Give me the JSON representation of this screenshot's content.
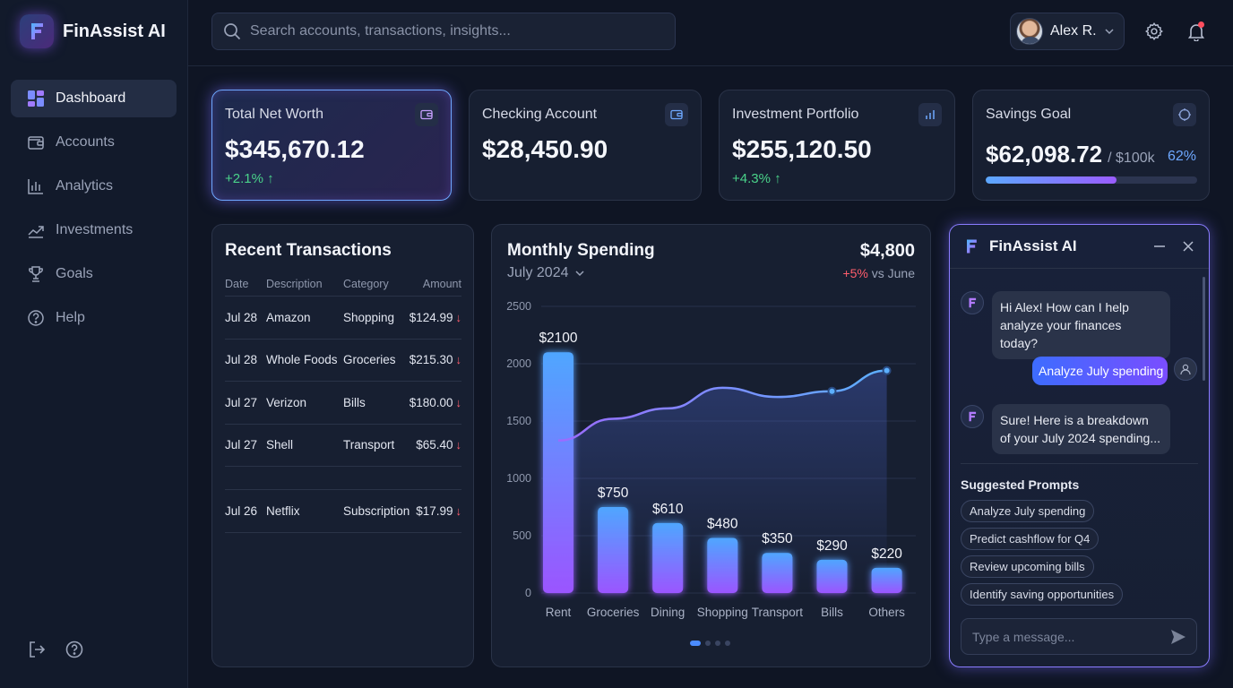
{
  "app": {
    "name": "FinAssist AI"
  },
  "sidebar": {
    "items": [
      {
        "label": "Dashboard",
        "icon": "dashboard-icon",
        "active": true
      },
      {
        "label": "Accounts",
        "icon": "wallet-icon"
      },
      {
        "label": "Analytics",
        "icon": "bar-chart-icon"
      },
      {
        "label": "Investments",
        "icon": "trend-icon"
      },
      {
        "label": "Goals",
        "icon": "trophy-icon"
      },
      {
        "label": "Help",
        "icon": "help-icon"
      }
    ],
    "bottom": [
      "logout-icon",
      "help-icon"
    ]
  },
  "search": {
    "placeholder": "Search accounts, transactions, insights..."
  },
  "user": {
    "name": "Alex R."
  },
  "colors": {
    "accent": "#5b8cff",
    "purple": "#9a5cff",
    "positive": "#4ad38a",
    "negative": "#ff5d6c",
    "bg": "#0f1524"
  },
  "stats": {
    "net_worth": {
      "label": "Total Net Worth",
      "value": "$345,670.12",
      "change": "+2.1% ↑"
    },
    "checking": {
      "label": "Checking Account",
      "value": "$28,450.90"
    },
    "investment": {
      "label": "Investment Portfolio",
      "value": "$255,120.50",
      "change": "+4.3% ↑"
    },
    "savings": {
      "label": "Savings Goal",
      "value": "$62,098.72",
      "target": "/ $100k",
      "percent": "62%",
      "progress": 0.62
    }
  },
  "transactions": {
    "title": "Recent Transactions",
    "headers": {
      "date": "Date",
      "description": "Description",
      "category": "Category",
      "amount": "Amount"
    },
    "rows": [
      {
        "date": "Jul 28",
        "description": "Amazon",
        "category": "Shopping",
        "amount": "$124.99"
      },
      {
        "date": "Jul 28",
        "description": "Whole Foods",
        "category": "Groceries",
        "amount": "$215.30"
      },
      {
        "date": "Jul 27",
        "description": "Verizon",
        "category": "Bills",
        "amount": "$180.00"
      },
      {
        "date": "Jul 27",
        "description": "Shell",
        "category": "Transport",
        "amount": "$65.40"
      },
      {
        "date": "Jul 26",
        "description": "Netflix",
        "category": "Subscription",
        "amount": "$17.99"
      }
    ]
  },
  "spending": {
    "title": "Monthly Spending",
    "period": "July 2024",
    "total": "$4,800",
    "compare_change": "+5%",
    "compare_text": "vs June"
  },
  "chart_data": {
    "type": "bar",
    "title": "Monthly Spending",
    "categories": [
      "Rent",
      "Groceries",
      "Dining",
      "Shopping",
      "Transport",
      "Bills",
      "Others"
    ],
    "values": [
      2100,
      750,
      610,
      480,
      350,
      290,
      220
    ],
    "data_labels": [
      "$2100",
      "$750",
      "$610",
      "$480",
      "$350",
      "$290",
      "$220"
    ],
    "yticks": [
      0,
      500,
      1000,
      1500,
      2000,
      2500
    ],
    "ylim": [
      0,
      2500
    ],
    "grid": true,
    "trend_line": {
      "type": "line",
      "values": [
        1330,
        1520,
        1610,
        1790,
        1710,
        1760,
        1940
      ]
    }
  },
  "assistant": {
    "title": "FinAssist AI",
    "messages": [
      {
        "from": "bot",
        "text": "Hi Alex! How can I help analyze your finances today?"
      },
      {
        "from": "user",
        "text": "Analyze July spending"
      },
      {
        "from": "bot",
        "text": "Sure! Here is a breakdown of your July 2024 spending..."
      }
    ],
    "suggested_title": "Suggested Prompts",
    "suggestions": [
      "Analyze July spending",
      "Predict cashflow for Q4",
      "Review upcoming bills",
      "Identify saving opportunities"
    ],
    "input_placeholder": "Type a message..."
  }
}
